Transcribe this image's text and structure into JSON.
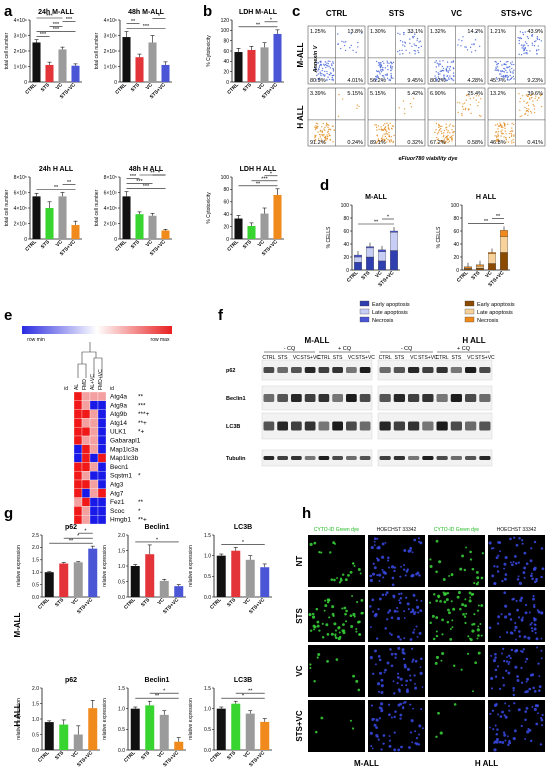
{
  "panel_labels": {
    "a": "a",
    "b": "b",
    "c": "c",
    "d": "d",
    "e": "e",
    "f": "f",
    "g": "g",
    "h": "h"
  },
  "groups": [
    "CTRL",
    "STS",
    "VC",
    "STS+VC"
  ],
  "colors": {
    "CTRL": "#111111",
    "STS_mall": "#e3343a",
    "VC": "#9b9b9b",
    "STSVC_mall": "#4a56d6",
    "STS_hall": "#38d430",
    "STSVC_hall": "#f08a1c"
  },
  "chart_data": [
    {
      "id": "a1",
      "type": "bar",
      "title": "24h M-ALL",
      "ylabel": "total cell number",
      "ytick_labels": [
        "0",
        "1×10⁶",
        "2×10⁶",
        "3×10⁶",
        "4×10⁶"
      ],
      "ylim": [
        0,
        4
      ],
      "categories": [
        "CTRL",
        "STS",
        "VC",
        "STS+VC"
      ],
      "values": [
        2.55,
        1.1,
        2.1,
        1.05
      ],
      "errors": [
        0.18,
        0.18,
        0.15,
        0.12
      ],
      "sig": [
        "***",
        "***",
        "***",
        "***",
        "***"
      ]
    },
    {
      "id": "a2",
      "type": "bar",
      "title": "48h M-ALL",
      "ylabel": "total cell number",
      "ytick_labels": [
        "0",
        "1×10⁶",
        "2×10⁶",
        "3×10⁶",
        "4×10⁶"
      ],
      "ylim": [
        0,
        4
      ],
      "categories": [
        "CTRL",
        "STS",
        "VC",
        "STS+VC"
      ],
      "values": [
        2.9,
        1.6,
        2.55,
        1.1
      ],
      "errors": [
        0.35,
        0.2,
        0.45,
        0.2
      ],
      "sig": [
        "***",
        "**",
        "*"
      ]
    },
    {
      "id": "b1",
      "type": "bar",
      "title": "LDH M-ALL",
      "ylabel": "% Cytotoxicity",
      "ytick_labels": [
        "0",
        "20",
        "40",
        "60",
        "80",
        "100",
        "120"
      ],
      "ylim": [
        0,
        120
      ],
      "categories": [
        "CTRL",
        "STS",
        "VC",
        "STS+VC"
      ],
      "values": [
        58,
        62,
        67,
        93
      ],
      "errors": [
        7,
        7,
        9,
        8
      ],
      "sig": [
        "**",
        "*"
      ]
    },
    {
      "id": "a3",
      "type": "bar",
      "title": "24h H ALL",
      "ylabel": "total cell number",
      "ytick_labels": [
        "0",
        "2×10⁵",
        "4×10⁵",
        "6×10⁵",
        "8×10⁵"
      ],
      "ylim": [
        0,
        8
      ],
      "categories": [
        "CTRL",
        "STS",
        "VC",
        "STS+VC"
      ],
      "values": [
        5.5,
        4.0,
        5.5,
        1.8
      ],
      "errors": [
        0.4,
        0.8,
        0.5,
        0.5
      ],
      "sig": [
        "**",
        "**"
      ]
    },
    {
      "id": "a4",
      "type": "bar",
      "title": "48h H ALL",
      "ylabel": "total cell number",
      "ytick_labels": [
        "0",
        "2×10⁵",
        "4×10⁵",
        "6×10⁵",
        "8×10⁵"
      ],
      "ylim": [
        0,
        8
      ],
      "categories": [
        "CTRL",
        "STS",
        "VC",
        "STS+VC"
      ],
      "values": [
        5.5,
        3.2,
        3.0,
        1.1
      ],
      "errors": [
        0.6,
        0.3,
        0.3,
        0.15
      ],
      "sig": [
        "***",
        "***",
        "***",
        "*",
        "**"
      ]
    },
    {
      "id": "b2",
      "type": "bar",
      "title": "LDH H ALL",
      "ylabel": "% Cytotoxicity",
      "ytick_labels": [
        "0",
        "20",
        "40",
        "60",
        "80",
        "100"
      ],
      "ylim": [
        0,
        100
      ],
      "categories": [
        "CTRL",
        "STS",
        "VC",
        "STS+VC"
      ],
      "values": [
        33,
        21,
        41,
        71
      ],
      "errors": [
        5,
        5,
        9,
        10
      ],
      "sig": [
        "**",
        "***",
        "*"
      ]
    },
    {
      "id": "d1",
      "type": "stacked-bar",
      "title": "M-ALL",
      "ylabel": "% CELLS",
      "ytick_labels": [
        "0",
        "20",
        "40",
        "60",
        "80",
        "100"
      ],
      "ylim": [
        0,
        100
      ],
      "categories": [
        "CTRL",
        "STS",
        "VC",
        "STS+VC"
      ],
      "series": [
        {
          "name": "Early apoptosis",
          "values": [
            12,
            20,
            14,
            30
          ]
        },
        {
          "name": "Late apoptosis",
          "values": [
            8,
            14,
            14,
            28
          ]
        },
        {
          "name": "Necrosis",
          "values": [
            3,
            2,
            3,
            2
          ]
        }
      ],
      "sig": [
        "**",
        "*"
      ]
    },
    {
      "id": "d2",
      "type": "stacked-bar",
      "title": "H ALL",
      "ylabel": "% CELLS",
      "ytick_labels": [
        "0",
        "20",
        "40",
        "60",
        "80",
        "100"
      ],
      "ylim": [
        0,
        100
      ],
      "categories": [
        "CTRL",
        "STS",
        "VC",
        "STS+VC"
      ],
      "series": [
        {
          "name": "Early apoptosis",
          "values": [
            2,
            3,
            10,
            27
          ]
        },
        {
          "name": "Late apoptosis",
          "values": [
            1,
            3,
            15,
            24
          ]
        },
        {
          "name": "Necrosis",
          "values": [
            2,
            2,
            2,
            10
          ]
        }
      ],
      "sig": [
        "**",
        "**"
      ]
    },
    {
      "id": "g1",
      "type": "bar",
      "title": "p62",
      "ylabel": "relative expression",
      "ytick_labels": [
        "0.0",
        "0.5",
        "1.0",
        "1.5",
        "2.0",
        "2.5"
      ],
      "ylim": [
        0,
        2.5
      ],
      "categories": [
        "CTRL",
        "STS",
        "VC",
        "STS+VC"
      ],
      "values": [
        1.0,
        1.35,
        1.4,
        1.95
      ],
      "errors": [
        0.02,
        0.04,
        0.03,
        0.1
      ],
      "sig": [
        "**",
        "*",
        "*"
      ]
    },
    {
      "id": "g2",
      "type": "bar",
      "title": "Beclin1",
      "ylabel": "relative expression",
      "ytick_labels": [
        "0.0",
        "0.5",
        "1.0",
        "1.5",
        "2.0"
      ],
      "ylim": [
        0,
        2
      ],
      "categories": [
        "CTRL",
        "STS",
        "VC",
        "STS+VC"
      ],
      "values": [
        1.0,
        1.38,
        0.52,
        0.35
      ],
      "errors": [
        0.05,
        0.3,
        0.05,
        0.05
      ],
      "sig": [
        "*"
      ]
    },
    {
      "id": "g3",
      "type": "bar",
      "title": "LC3B",
      "ylabel": "relative expression",
      "ytick_labels": [
        "0.0",
        "0.5",
        "1.0",
        "1.5"
      ],
      "ylim": [
        0,
        1.5
      ],
      "categories": [
        "CTRL",
        "STS",
        "VC",
        "STS+VC"
      ],
      "values": [
        1.0,
        1.12,
        0.9,
        0.72
      ],
      "errors": [
        0.04,
        0.08,
        0.1,
        0.08
      ],
      "sig": [
        "*"
      ]
    },
    {
      "id": "g4",
      "type": "bar",
      "title": "p62",
      "ylabel": "relative expression",
      "ytick_labels": [
        "0.0",
        "0.5",
        "1.0",
        "1.5",
        "2.0"
      ],
      "ylim": [
        0,
        2
      ],
      "categories": [
        "CTRL",
        "STS",
        "VC",
        "STS+VC"
      ],
      "values": [
        0.9,
        0.82,
        0.5,
        1.35
      ],
      "errors": [
        0.04,
        0.15,
        0.28,
        0.25
      ],
      "sig": []
    },
    {
      "id": "g5",
      "type": "bar",
      "title": "Beclin1",
      "ylabel": "relative expression",
      "ytick_labels": [
        "0.0",
        "0.5",
        "1.0",
        "1.5"
      ],
      "ylim": [
        0,
        1.5
      ],
      "categories": [
        "CTRL",
        "STS",
        "VC",
        "STS+VC"
      ],
      "values": [
        1.0,
        1.08,
        0.85,
        0.2
      ],
      "errors": [
        0.04,
        0.1,
        0.1,
        0.1
      ],
      "sig": [
        "**",
        "*"
      ]
    },
    {
      "id": "g6",
      "type": "bar",
      "title": "LC3B",
      "ylabel": "relative expression",
      "ytick_labels": [
        "0.0",
        "0.5",
        "1.0",
        "1.5"
      ],
      "ylim": [
        0,
        1.5
      ],
      "categories": [
        "CTRL",
        "STS",
        "VC",
        "STS+VC"
      ],
      "values": [
        1.0,
        1.12,
        0.88,
        0.68
      ],
      "errors": [
        0.04,
        0.06,
        0.07,
        0.08
      ],
      "sig": [
        "*",
        "**"
      ]
    }
  ],
  "facs": {
    "headers": [
      "CTRL",
      "STS",
      "VC",
      "STS+VC"
    ],
    "rows": [
      "M-ALL",
      "H ALL"
    ],
    "ylabel": "Annexin V",
    "xlabel": "eFluor780 viability dye",
    "quads": [
      [
        [
          "1.25%",
          "13.8%",
          "80.9%",
          "4.01%"
        ],
        [
          "1.30%",
          "33.1%",
          "56.2%",
          "9.45%"
        ],
        [
          "1.32%",
          "14.2%",
          "80.2%",
          "4.28%"
        ],
        [
          "1.21%",
          "43.9%",
          "45.7%",
          "9.23%"
        ]
      ],
      [
        [
          "3.39%",
          "5.15%",
          "91.2%",
          "0.24%"
        ],
        [
          "5.15%",
          "5.42%",
          "89.1%",
          "0.32%"
        ],
        [
          "6.90%",
          "25.4%",
          "67.2%",
          "0.58%"
        ],
        [
          "13.2%",
          "39.6%",
          "46.8%",
          "0.41%"
        ]
      ]
    ]
  },
  "legend_d": [
    "Early apoptosis",
    "Late apoptosis",
    "Necrosis"
  ],
  "heatmap": {
    "minlabel": "row min",
    "maxlabel": "row max",
    "id_label": "id",
    "cols": [
      "AL",
      "FMD",
      "AL+VC",
      "FMD+VC"
    ],
    "genes": [
      "Atg4a",
      "Atg9a",
      "Atg9b",
      "Atg14",
      "ULK1",
      "Gabarapl1",
      "Map1lc3a",
      "Map1lc3b",
      "Becn1",
      "Sqstm1",
      "Atg3",
      "Atg7",
      "Fez1",
      "Scoc",
      "Hmgb1"
    ],
    "sig": [
      "**",
      "***",
      "***+",
      "**+",
      "*+",
      "",
      "",
      "",
      "",
      "*",
      "",
      "",
      "**",
      "*",
      "**+"
    ],
    "values": [
      [
        1,
        0,
        0,
        0
      ],
      [
        1,
        0,
        -1,
        -1
      ],
      [
        1,
        1,
        0,
        -1
      ],
      [
        1,
        0,
        0,
        -1
      ],
      [
        1,
        1,
        0,
        -1
      ],
      [
        1,
        0,
        0,
        -1
      ],
      [
        -1,
        1,
        0,
        -1
      ],
      [
        -1,
        1,
        -1,
        1
      ],
      [
        1,
        1,
        0,
        -1
      ],
      [
        1,
        0,
        -1,
        -1
      ],
      [
        1,
        1,
        0,
        -1
      ],
      [
        1,
        -1,
        0,
        1
      ],
      [
        0,
        1,
        -1,
        -1
      ],
      [
        1,
        0,
        -1,
        -1
      ],
      [
        1,
        0,
        -1,
        -1
      ]
    ]
  },
  "wb": {
    "groups": [
      "M-ALL",
      "H ALL"
    ],
    "cq_minus": "- CQ",
    "cq_plus": "+ CQ",
    "lanes": [
      "CTRL",
      "STS",
      "VC",
      "STS+VC",
      "CTRL",
      "STS",
      "VC",
      "STS+VC"
    ],
    "proteins": [
      "p62",
      "Beclin1",
      "LC3B",
      "Tubulin"
    ]
  },
  "micro": {
    "headers": [
      "CYTO-ID Green dye",
      "HOECHST 33342",
      "CYTO-ID Green dye",
      "HOECHST 33342"
    ],
    "rows": [
      "NT",
      "STS",
      "VC",
      "STS+VC"
    ],
    "footer": [
      "M-ALL",
      "H ALL"
    ]
  }
}
